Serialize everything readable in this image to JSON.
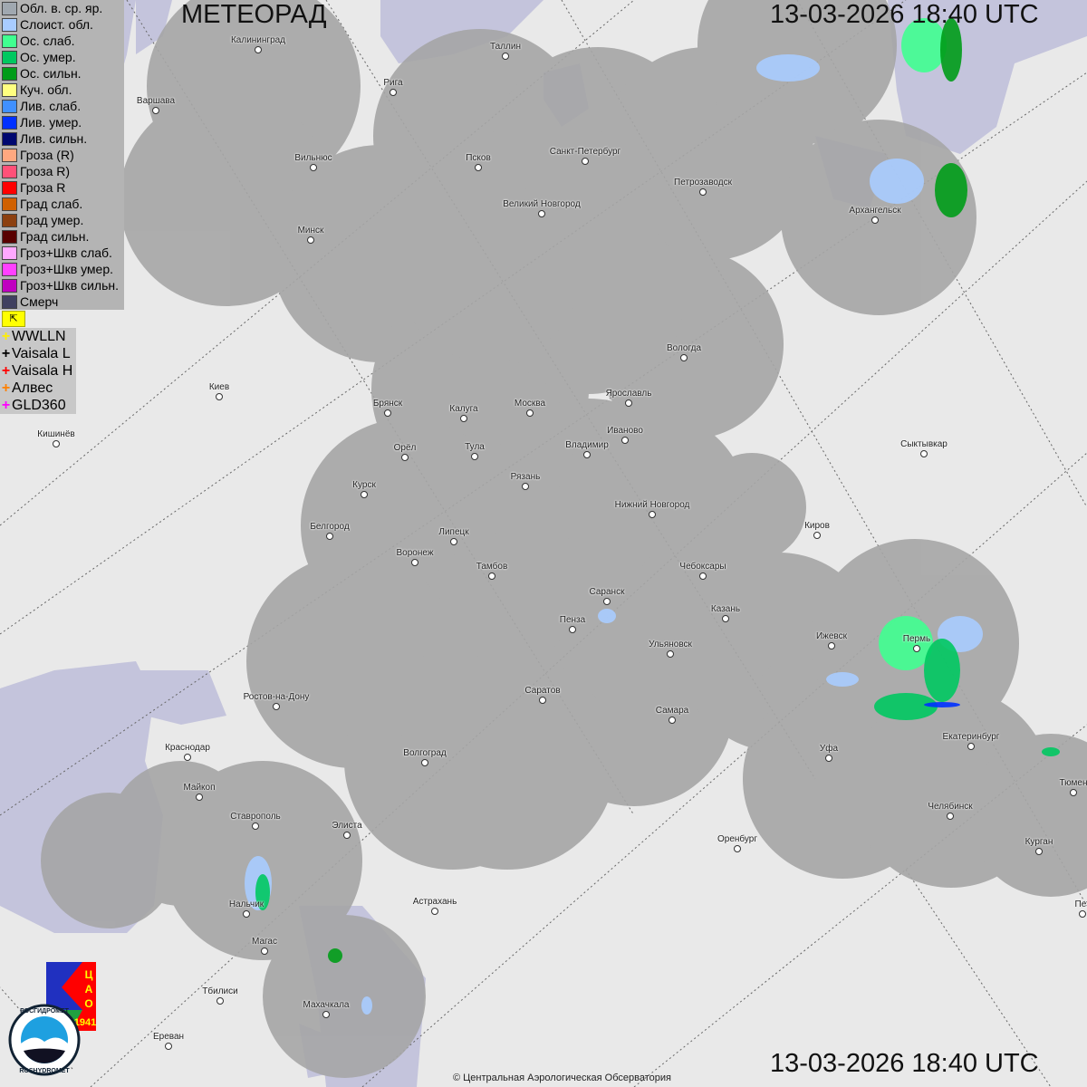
{
  "header": {
    "title": "МЕТЕОРАД",
    "timestamp_top": "13-03-2026  18:40 UTC",
    "timestamp_bottom": "13-03-2026  18:40 UTC"
  },
  "legend": [
    {
      "label": "Обл. в. ср. яр.",
      "color": "#a0a8b0"
    },
    {
      "label": "Слоист. обл.",
      "color": "#a8ccff"
    },
    {
      "label": "Ос. слаб.",
      "color": "#40ff90"
    },
    {
      "label": "Ос. умер.",
      "color": "#00c860"
    },
    {
      "label": "Ос. сильн.",
      "color": "#009c18"
    },
    {
      "label": "Куч. обл.",
      "color": "#ffff80"
    },
    {
      "label": "Лив. слаб.",
      "color": "#4090ff"
    },
    {
      "label": "Лив. умер.",
      "color": "#0030ff"
    },
    {
      "label": "Лив. сильн.",
      "color": "#000870"
    },
    {
      "label": "Гроза (R)",
      "color": "#ffa880"
    },
    {
      "label": "Гроза R)",
      "color": "#ff5078"
    },
    {
      "label": "Гроза R",
      "color": "#ff0000"
    },
    {
      "label": "Град слаб.",
      "color": "#d06000"
    },
    {
      "label": "Град умер.",
      "color": "#8c4010"
    },
    {
      "label": "Град сильн.",
      "color": "#580000"
    },
    {
      "label": "Гроз+Шкв слаб.",
      "color": "#ffa8ff"
    },
    {
      "label": "Гроз+Шкв умер.",
      "color": "#ff40ff"
    },
    {
      "label": "Гроз+Шкв сильн.",
      "color": "#c000c0"
    },
    {
      "label": "Смерч",
      "color": "#404060"
    }
  ],
  "lightning_networks": [
    {
      "label": "WWLLN",
      "color": "#ffee00"
    },
    {
      "label": "Vaisala L",
      "color": "#000000"
    },
    {
      "label": "Vaisala H",
      "color": "#ff0000"
    },
    {
      "label": "Алвес",
      "color": "#ff8000"
    },
    {
      "label": "GLD360",
      "color": "#ff00ff"
    }
  ],
  "cities": [
    "Калининград",
    "Таллин",
    "Рига",
    "Варшава",
    "Вильнюс",
    "Псков",
    "Санкт-Петербург",
    "Петрозаводск",
    "Архангельск",
    "Великий Новгород",
    "Минск",
    "Вологда",
    "Киев",
    "Брянск",
    "Калуга",
    "Москва",
    "Ярославль",
    "Иваново",
    "Кишинёв",
    "Орёл",
    "Тула",
    "Владимир",
    "Сыктывкар",
    "Рязань",
    "Курск",
    "Нижний Новгород",
    "Белгород",
    "Липецк",
    "Киров",
    "Воронеж",
    "Тамбов",
    "Чебоксары",
    "Саранск",
    "Казань",
    "Пенза",
    "Ижевск",
    "Пермь",
    "Ульяновск",
    "Ростов-на-Дону",
    "Саратов",
    "Самара",
    "Екатеринбург",
    "Краснодар",
    "Уфа",
    "Волгоград",
    "Тюмен",
    "Майкоп",
    "Челябинск",
    "Ставрополь",
    "Элиста",
    "Оренбург",
    "Курган",
    "Нальчик",
    "Астрахань",
    "Пет",
    "Магас",
    "Тбилиси",
    "Махачкала",
    "Ереван"
  ],
  "logos": {
    "cao": "ЦАО 1941",
    "roshydromet": "РОСГИДРОМЕТ ROSHYDROMET"
  },
  "copyright": "© Центральная Аэрологическая Обсерватория",
  "colors": {
    "land": "#e9e9e9",
    "water": "#c4c4dc",
    "radar_coverage": "#a6a6a6"
  }
}
